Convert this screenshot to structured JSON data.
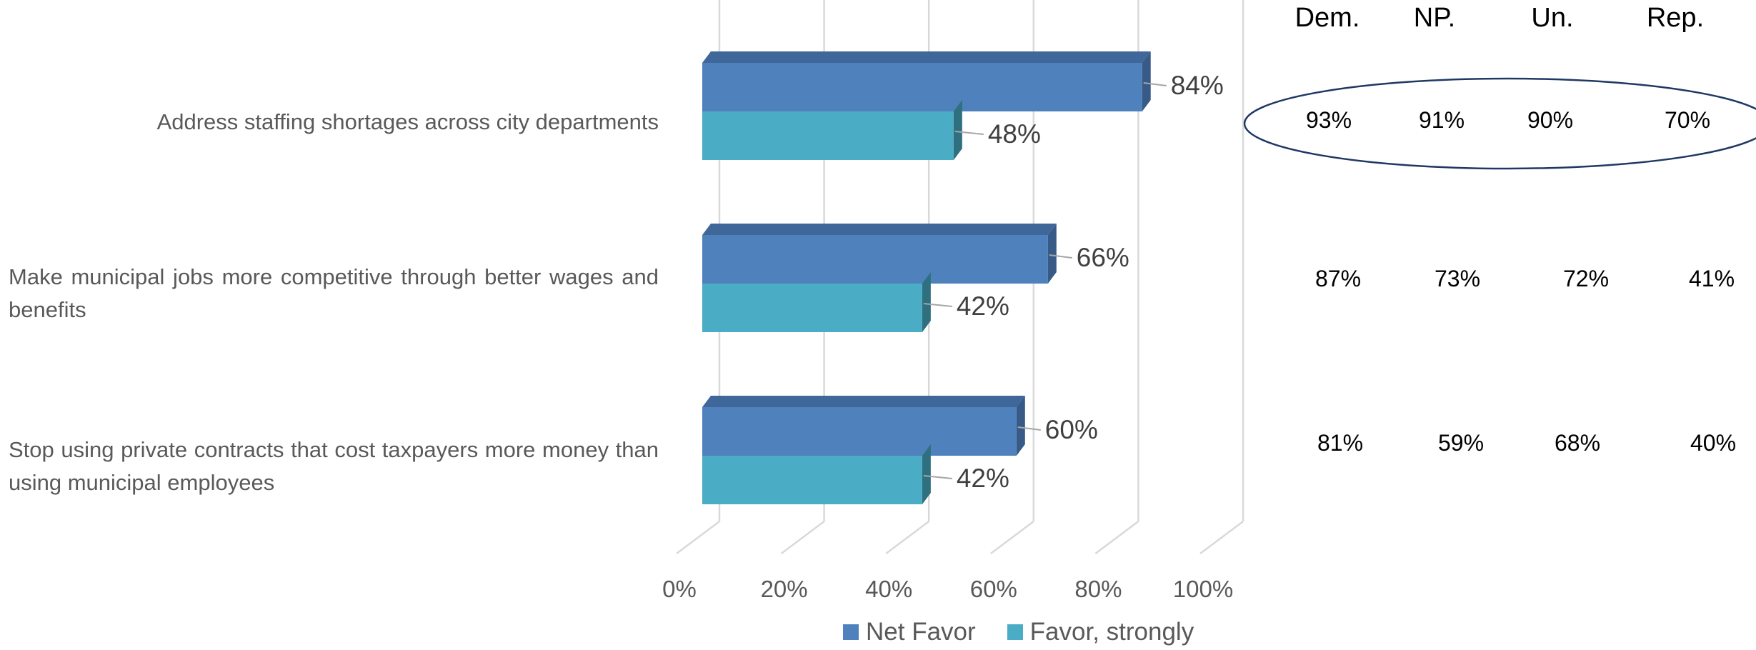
{
  "chart_data": {
    "type": "bar",
    "orientation": "horizontal",
    "three_d": true,
    "categories": [
      "Address staffing shortages across city departments",
      "Make municipal jobs more competitive through better wages and benefits",
      "Stop using private contracts that cost taxpayers more money than using municipal employees"
    ],
    "series": [
      {
        "name": "Net Favor",
        "values": [
          84,
          66,
          60
        ],
        "labels": [
          "84%",
          "66%",
          "60%"
        ],
        "color": "#4F81BD"
      },
      {
        "name": "Favor, strongly",
        "values": [
          48,
          42,
          42
        ],
        "labels": [
          "48%",
          "42%",
          "42%"
        ],
        "color": "#4BACC6"
      }
    ],
    "x_ticks": [
      "0%",
      "20%",
      "40%",
      "60%",
      "80%",
      "100%"
    ],
    "xlim": [
      0,
      100
    ],
    "grid": true,
    "legend_position": "bottom"
  },
  "party_table": {
    "headers": [
      "Dem.",
      "NP.",
      "Un.",
      "Rep."
    ],
    "rows": [
      [
        "93%",
        "91%",
        "90%",
        "70%"
      ],
      [
        "87%",
        "73%",
        "72%",
        "41%"
      ],
      [
        "81%",
        "59%",
        "68%",
        "40%"
      ]
    ],
    "highlighted_row": 0
  },
  "colors": {
    "net_favor": "#4F81BD",
    "net_favor_top": "#3F679A",
    "net_favor_side": "#375A86",
    "favor_strongly": "#4BACC6",
    "favor_strongly_top": "#3C8A9F",
    "favor_strongly_side": "#2F7080",
    "grid": "#D9D9D9",
    "ellipse": "#1F3864"
  }
}
